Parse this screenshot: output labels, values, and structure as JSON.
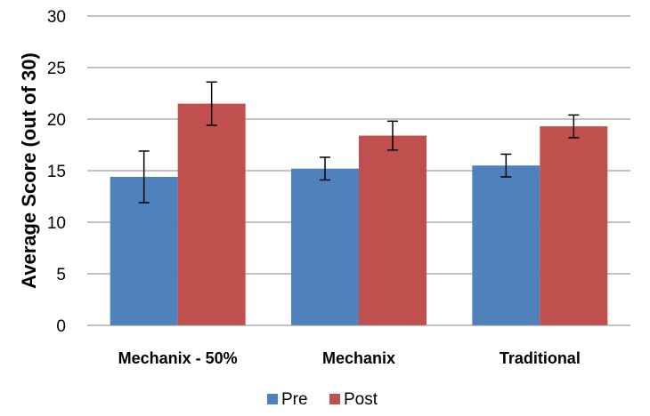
{
  "chart_data": {
    "type": "bar",
    "categories": [
      "Mechanix - 50%",
      "Mechanix",
      "Traditional"
    ],
    "series": [
      {
        "name": "Pre",
        "values": [
          14.4,
          15.2,
          15.5
        ],
        "error": [
          2.5,
          1.1,
          1.1
        ],
        "color": "#4F81BD"
      },
      {
        "name": "Post",
        "values": [
          21.5,
          18.4,
          19.3
        ],
        "error": [
          2.1,
          1.4,
          1.1
        ],
        "color": "#C0504D"
      }
    ],
    "xlabel": "",
    "ylabel": "Average Score (out of 30)",
    "ylim": [
      0,
      30
    ],
    "yticks": [
      0,
      5,
      10,
      15,
      20,
      25,
      30
    ],
    "grid": true,
    "legend_position": "bottom"
  }
}
